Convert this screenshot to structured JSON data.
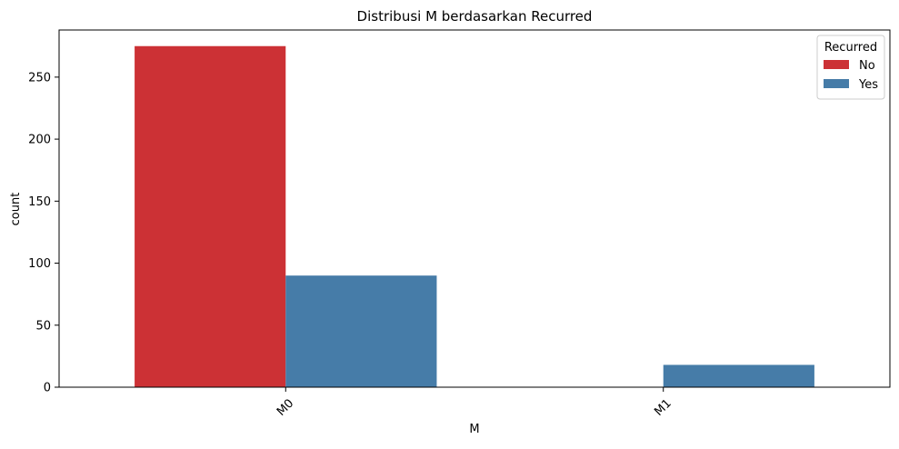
{
  "chart_data": {
    "type": "bar",
    "title": "Distribusi M berdasarkan Recurred",
    "xlabel": "M",
    "ylabel": "count",
    "categories": [
      "M0",
      "M1"
    ],
    "series": [
      {
        "name": "No",
        "values": [
          275,
          0
        ],
        "color": "#cc3135"
      },
      {
        "name": "Yes",
        "values": [
          90,
          18
        ],
        "color": "#467ca8"
      }
    ],
    "ylim": [
      0,
      288
    ],
    "yticks": [
      0,
      50,
      100,
      150,
      200,
      250
    ],
    "grid": false,
    "legend": {
      "title": "Recurred",
      "placement": "top-right"
    },
    "xtick_rotation": 45
  }
}
